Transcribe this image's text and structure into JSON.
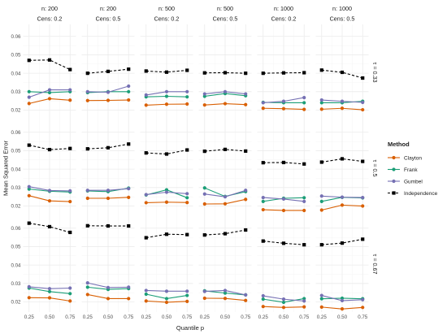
{
  "chart_data": {
    "type": "line",
    "xlabel": "Quantile p",
    "ylabel": "Mean Squared Error",
    "x": [
      0.25,
      0.5,
      0.75
    ],
    "x_tick_labels": [
      "0.25",
      "0.50",
      "0.75"
    ],
    "y_ticks": [
      0.02,
      0.03,
      0.04,
      0.05,
      0.06
    ],
    "y_tick_labels": [
      "0.02",
      "0.03",
      "0.04",
      "0.05",
      "0.06"
    ],
    "ylim": [
      0.0145,
      0.0665
    ],
    "grid": true,
    "legend": {
      "title": "Method",
      "placement": "right",
      "entries": [
        {
          "name": "Clayton",
          "color": "#D95F02",
          "marker": "circle",
          "dash": "solid"
        },
        {
          "name": "Frank",
          "color": "#1B9E77",
          "marker": "circle",
          "dash": "solid"
        },
        {
          "name": "Gumbel",
          "color": "#7570B3",
          "marker": "circle",
          "dash": "solid"
        },
        {
          "name": "Independence",
          "color": "#000000",
          "marker": "square",
          "dash": "dashed"
        }
      ]
    },
    "columns": [
      {
        "n": "n: 200",
        "cens": "Cens: 0.2"
      },
      {
        "n": "n: 200",
        "cens": "Cens: 0.5"
      },
      {
        "n": "n: 500",
        "cens": "Cens: 0.2"
      },
      {
        "n": "n: 500",
        "cens": "Cens: 0.5"
      },
      {
        "n": "n: 1000",
        "cens": "Cens: 0.2"
      },
      {
        "n": "n: 1000",
        "cens": "Cens: 0.5"
      }
    ],
    "rows": [
      {
        "label": "τ = 0.33"
      },
      {
        "label": "τ = 0.5"
      },
      {
        "label": "τ = 0.67"
      }
    ],
    "panels": [
      [
        {
          "Clayton": [
            0.0236,
            0.0262,
            0.0254
          ],
          "Frank": [
            0.03,
            0.0295,
            0.03
          ],
          "Gumbel": [
            0.027,
            0.031,
            0.031
          ],
          "Independence": [
            0.047,
            0.0472,
            0.042
          ]
        },
        {
          "Clayton": [
            0.0252,
            0.0253,
            0.0255
          ],
          "Frank": [
            0.0295,
            0.03,
            0.03
          ],
          "Gumbel": [
            0.03,
            0.0297,
            0.033
          ],
          "Independence": [
            0.04,
            0.041,
            0.0422
          ]
        },
        {
          "Clayton": [
            0.0227,
            0.0232,
            0.0233
          ],
          "Frank": [
            0.0272,
            0.0275,
            0.0272
          ],
          "Gumbel": [
            0.0282,
            0.03,
            0.03
          ],
          "Independence": [
            0.0412,
            0.0406,
            0.0416
          ]
        },
        {
          "Clayton": [
            0.0228,
            0.0235,
            0.023
          ],
          "Frank": [
            0.0275,
            0.029,
            0.0278
          ],
          "Gumbel": [
            0.0288,
            0.03,
            0.0288
          ],
          "Independence": [
            0.0402,
            0.0403,
            0.04
          ]
        },
        {
          "Clayton": [
            0.021,
            0.0208,
            0.0204
          ],
          "Frank": [
            0.0242,
            0.024,
            0.024
          ],
          "Gumbel": [
            0.024,
            0.0248,
            0.0268
          ],
          "Independence": [
            0.04,
            0.0402,
            0.0403
          ]
        },
        {
          "Clayton": [
            0.0205,
            0.021,
            0.0202
          ],
          "Frank": [
            0.024,
            0.024,
            0.0248
          ],
          "Gumbel": [
            0.0255,
            0.0248,
            0.0242
          ],
          "Independence": [
            0.0417,
            0.0405,
            0.0374
          ]
        }
      ],
      [
        {
          "Clayton": [
            0.0256,
            0.0228,
            0.0224
          ],
          "Frank": [
            0.0292,
            0.028,
            0.0276
          ],
          "Gumbel": [
            0.0305,
            0.0284,
            0.0282
          ],
          "Independence": [
            0.053,
            0.0506,
            0.0512
          ]
        },
        {
          "Clayton": [
            0.0242,
            0.0242,
            0.0247
          ],
          "Frank": [
            0.0282,
            0.0278,
            0.0297
          ],
          "Gumbel": [
            0.0285,
            0.0285,
            0.0294
          ],
          "Independence": [
            0.051,
            0.0516,
            0.0536
          ]
        },
        {
          "Clayton": [
            0.0218,
            0.0221,
            0.0219
          ],
          "Frank": [
            0.026,
            0.0288,
            0.0245
          ],
          "Gumbel": [
            0.0262,
            0.0275,
            0.0267
          ],
          "Independence": [
            0.0488,
            0.0482,
            0.0504
          ]
        },
        {
          "Clayton": [
            0.0211,
            0.0212,
            0.0236
          ],
          "Frank": [
            0.0298,
            0.0252,
            0.0278
          ],
          "Gumbel": [
            0.0265,
            0.025,
            0.0285
          ],
          "Independence": [
            0.0497,
            0.0507,
            0.0498
          ]
        },
        {
          "Clayton": [
            0.018,
            0.0176,
            0.0176
          ],
          "Frank": [
            0.0225,
            0.0242,
            0.0245
          ],
          "Gumbel": [
            0.0246,
            0.0238,
            0.0225
          ],
          "Independence": [
            0.0435,
            0.0436,
            0.0428
          ]
        },
        {
          "Clayton": [
            0.0178,
            0.0205,
            0.02
          ],
          "Frank": [
            0.0225,
            0.0247,
            0.0244
          ],
          "Gumbel": [
            0.0254,
            0.0248,
            0.0246
          ],
          "Independence": [
            0.0438,
            0.0456,
            0.0442
          ]
        }
      ],
      [
        {
          "Clayton": [
            0.0223,
            0.0222,
            0.0205
          ],
          "Frank": [
            0.0275,
            0.0256,
            0.0245
          ],
          "Gumbel": [
            0.0282,
            0.0272,
            0.0275
          ],
          "Independence": [
            0.0627,
            0.0608,
            0.0577
          ]
        },
        {
          "Clayton": [
            0.024,
            0.0218,
            0.0218
          ],
          "Frank": [
            0.028,
            0.0268,
            0.0272
          ],
          "Gumbel": [
            0.0303,
            0.0278,
            0.028
          ],
          "Independence": [
            0.0613,
            0.0612,
            0.0612
          ]
        },
        {
          "Clayton": [
            0.0205,
            0.0198,
            0.0203
          ],
          "Frank": [
            0.0242,
            0.0218,
            0.0235
          ],
          "Gumbel": [
            0.0262,
            0.0258,
            0.0258
          ],
          "Independence": [
            0.0548,
            0.0567,
            0.0565
          ]
        },
        {
          "Clayton": [
            0.022,
            0.0219,
            0.0208
          ],
          "Frank": [
            0.026,
            0.0248,
            0.0238
          ],
          "Gumbel": [
            0.0257,
            0.0262,
            0.0238
          ],
          "Independence": [
            0.0563,
            0.057,
            0.059
          ]
        },
        {
          "Clayton": [
            0.0175,
            0.017,
            0.0173
          ],
          "Frank": [
            0.0215,
            0.0198,
            0.0218
          ],
          "Gumbel": [
            0.0233,
            0.0215,
            0.0205
          ],
          "Independence": [
            0.053,
            0.0518,
            0.051
          ]
        },
        {
          "Clayton": [
            0.0172,
            0.0162,
            0.017
          ],
          "Frank": [
            0.0217,
            0.022,
            0.0217
          ],
          "Gumbel": [
            0.0235,
            0.0207,
            0.0212
          ],
          "Independence": [
            0.051,
            0.0519,
            0.054
          ]
        }
      ]
    ]
  }
}
